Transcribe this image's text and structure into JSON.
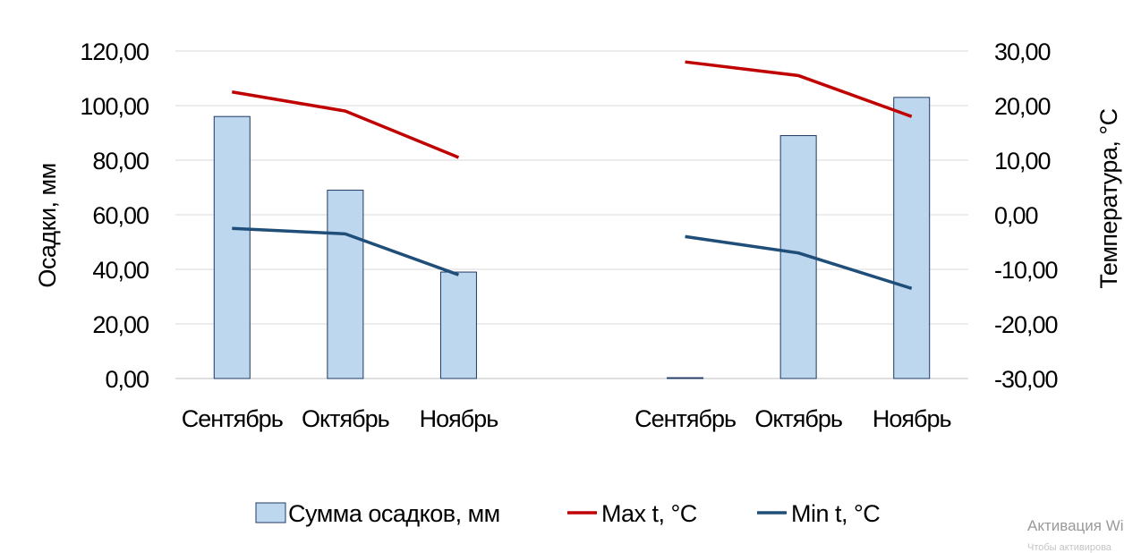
{
  "chart_data": {
    "type": "bar",
    "groups": [
      {
        "categories": [
          "Сентябрь",
          "Октябрь",
          "Ноябрь"
        ],
        "precipitation": [
          96.0,
          69.0,
          39.0
        ],
        "max_t": [
          22.5,
          19.0,
          10.5
        ],
        "min_t": [
          -2.5,
          -3.5,
          -11.0
        ]
      },
      {
        "categories": [
          "Сентябрь",
          "Октябрь",
          "Ноябрь"
        ],
        "precipitation": [
          0.3,
          89.0,
          103.0
        ],
        "max_t": [
          28.0,
          25.5,
          18.0
        ],
        "min_t": [
          -4.0,
          -7.0,
          -13.5
        ]
      }
    ],
    "series": [
      {
        "name": "Сумма осадков, мм",
        "type": "bar",
        "axis": "left",
        "color": "#bdd7ee",
        "stroke": "#1f3864"
      },
      {
        "name": "Max t, °C",
        "type": "line",
        "axis": "right",
        "color": "#c00000"
      },
      {
        "name": "Min t, °C",
        "type": "line",
        "axis": "right",
        "color": "#1f4e79"
      }
    ],
    "ylabel_left": "Осадки, мм",
    "ylabel_right": "Температура, °C",
    "ylim_left": [
      0,
      120
    ],
    "ylim_right": [
      -30,
      30
    ],
    "yticks_left": [
      "0,00",
      "20,00",
      "40,00",
      "60,00",
      "80,00",
      "100,00",
      "120,00"
    ],
    "yticks_right": [
      "-30,00",
      "-20,00",
      "-10,00",
      "0,00",
      "10,00",
      "20,00",
      "30,00"
    ],
    "grid": true,
    "legend_position": "bottom"
  },
  "watermark": {
    "line1": "Активация Wi",
    "line2": "Чтобы активирова"
  }
}
